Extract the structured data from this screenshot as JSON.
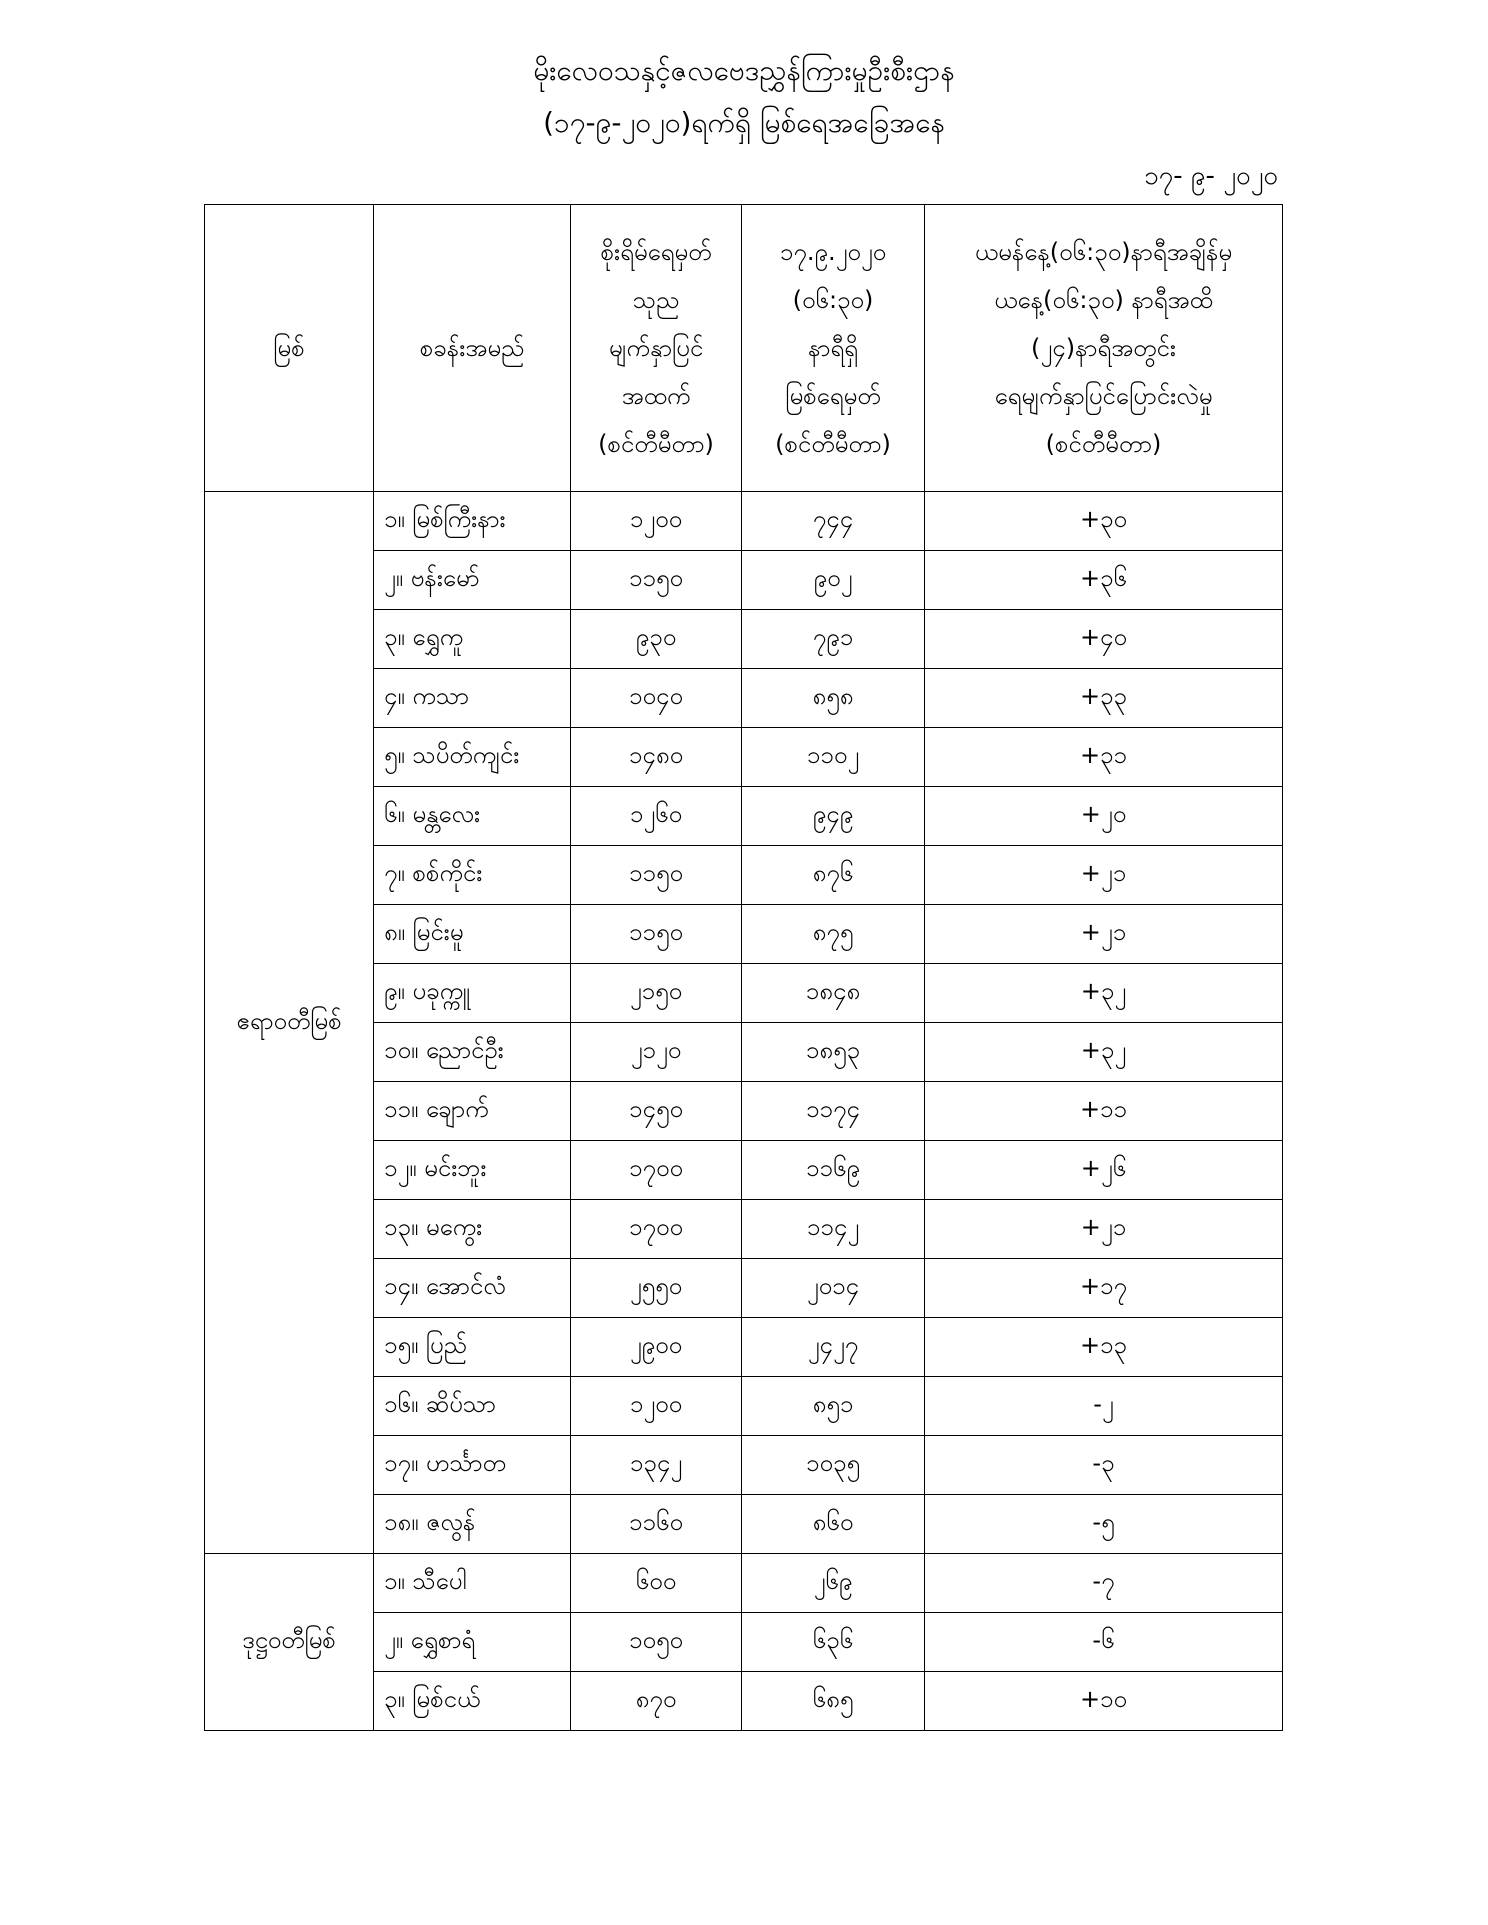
{
  "title": "မိုးလေဝသနှင့်ဇလဗေဒညွှန်ကြားမှုဦးစီးဌာန",
  "subtitle": "(၁၇-၉-၂၀၂၀)ရက်ရှိ မြစ်ရေအခြေအနေ",
  "date": "၁၇- ၉- ၂၀၂၀",
  "table": {
    "headers": [
      [
        "မြစ်"
      ],
      [
        "စခန်းအမည်"
      ],
      [
        "စိုးရိမ်ရေမှတ်",
        "သုည",
        "မျက်နှာပြင်",
        "အထက်",
        "(စင်တီမီတာ)"
      ],
      [
        "၁၇.၉.၂၀၂၀",
        "(၀၆:၃၀)",
        "နာရီရှိ",
        "မြစ်ရေမှတ်",
        "(စင်တီမီတာ)"
      ],
      [
        "ယမန်နေ့(၀၆:၃၀)နာရီအချိန်မှ",
        "ယနေ့(၀၆:၃၀) နာရီအထိ",
        "(၂၄)နာရီအတွင်း",
        "ရေမျက်နှာပြင်ပြောင်းလဲမှု",
        "(စင်တီမီတာ)"
      ]
    ],
    "groups": [
      {
        "river": "ဧရာဝတီမြစ်",
        "rows": [
          [
            "၁။ မြစ်ကြီးနား",
            "၁၂၀၀",
            "၇၄၄",
            "+၃၀"
          ],
          [
            "၂။ ဗန်းမော်",
            "၁၁၅၀",
            "၉၀၂",
            "+၃၆"
          ],
          [
            "၃။ ရွှေကူ",
            "၉၃၀",
            "၇၉၁",
            "+၄၀"
          ],
          [
            "၄။ ကသာ",
            "၁၀၄၀",
            "၈၅၈",
            "+၃၃"
          ],
          [
            "၅။ သပိတ်ကျင်း",
            "၁၄၈၀",
            "၁၁၀၂",
            "+၃၁"
          ],
          [
            "၆။ မန္တလေး",
            "၁၂၆၀",
            "၉၄၉",
            "+၂၀"
          ],
          [
            "၇။ စစ်ကိုင်း",
            "၁၁၅၀",
            "၈၇၆",
            "+၂၁"
          ],
          [
            "၈။ မြင်းမူ",
            "၁၁၅၀",
            "၈၇၅",
            "+၂၁"
          ],
          [
            "၉။ ပခုက္ကူ",
            "၂၁၅၀",
            "၁၈၄၈",
            "+၃၂"
          ],
          [
            "၁၀။ ညောင်ဦး",
            "၂၁၂၀",
            "၁၈၅၃",
            "+၃၂"
          ],
          [
            "၁၁။ ချောက်",
            "၁၄၅၀",
            "၁၁၇၄",
            "+၁၁"
          ],
          [
            "၁၂။ မင်းဘူး",
            "၁၇၀၀",
            "၁၁၆၉",
            "+၂၆"
          ],
          [
            "၁၃။ မကွေး",
            "၁၇၀၀",
            "၁၁၄၂",
            "+၂၁"
          ],
          [
            "၁၄။ အောင်လံ",
            "၂၅၅၀",
            "၂၀၁၄",
            "+၁၇"
          ],
          [
            "၁၅။ ပြည်",
            "၂၉၀၀",
            "၂၄၂၇",
            "+၁၃"
          ],
          [
            "၁၆။ ဆိပ်သာ",
            "၁၂၀၀",
            "၈၅၁",
            "-၂"
          ],
          [
            "၁၇။ ဟင်္သာတ",
            "၁၃၄၂",
            "၁၀၃၅",
            "-၃"
          ],
          [
            "၁၈။ ဇလွန်",
            "၁၁၆၀",
            "၈၆၀",
            "-၅"
          ]
        ]
      },
      {
        "river": "ဒုဋ္ဌဝတီမြစ်",
        "rows": [
          [
            "၁။ သီပေါ",
            "၆၀၀",
            "၂၆၉",
            "-၇"
          ],
          [
            "၂။ ရွှေစာရံ",
            "၁၀၅၀",
            "၆၃၆",
            "-၆"
          ],
          [
            "၃။ မြစ်ငယ်",
            "၈၇၀",
            "၆၈၅",
            "+၁၀"
          ]
        ]
      }
    ]
  }
}
